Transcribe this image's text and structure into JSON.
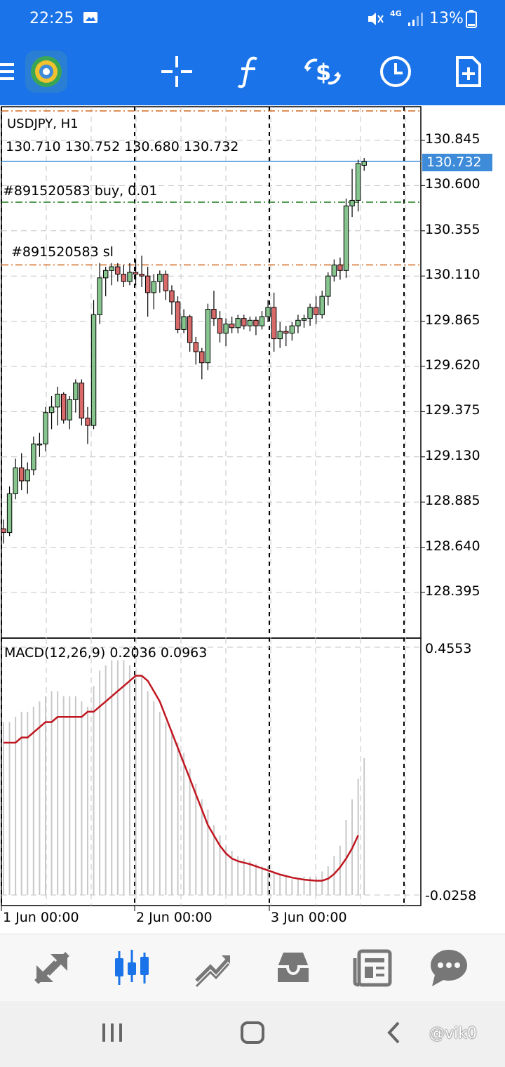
{
  "status": {
    "time": "22:25",
    "network": "4G",
    "battery": "13%"
  },
  "toolbar": {
    "icons": [
      "menu-icon",
      "metatrader-logo",
      "crosshair-icon",
      "function-icon",
      "trade-icon",
      "clock-icon",
      "new-order-icon"
    ]
  },
  "chart": {
    "symbol": "USDJPY, H1",
    "ohlc": "130.710 130.752 130.680 130.732",
    "last_price": "130.732",
    "order_label": "#891520583 buy, 0.01",
    "sl_label": "#891520583 sl",
    "price_axis": [
      "130.845",
      "130.600",
      "130.355",
      "130.110",
      "129.865",
      "129.620",
      "129.375",
      "129.130",
      "128.885",
      "128.640",
      "128.395"
    ],
    "date_axis": [
      "1 Jun 00:00",
      "2 Jun 00:00",
      "3 Jun 00:00"
    ],
    "colors": {
      "bull": "#86c58e",
      "bear": "#d96a6a",
      "last_price_line": "#3d8bd9",
      "order_line": "#1b7a1b",
      "sl_line": "#d2691e",
      "signal_line": "#c0161f",
      "histogram": "#c8c8c8"
    }
  },
  "macd": {
    "label": "MACD(12,26,9) 0.2036 0.0963",
    "max": "0.4553",
    "min": "-0.0258"
  },
  "bottom_nav": {
    "items": [
      "quotes-icon",
      "chart-icon",
      "trade-icon",
      "history-icon",
      "news-icon",
      "chat-icon"
    ],
    "active": "chart-icon"
  },
  "watermark": "@vik0"
}
